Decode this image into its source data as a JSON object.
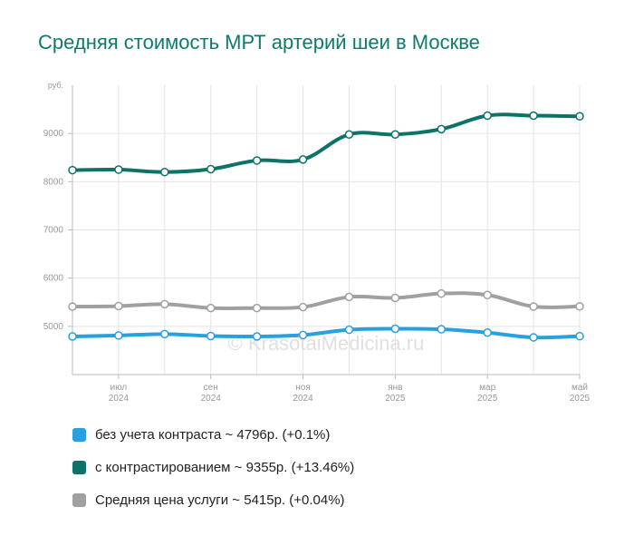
{
  "title": "Средняя стоимость МРТ артерий шеи в Москве",
  "watermark": "© KrasotaiMedicina.ru",
  "colors": {
    "series_blue": "#29a0e0",
    "series_teal": "#0d7267",
    "series_gray": "#a0a0a0",
    "grid": "#e4e4e4",
    "axis": "#bbbbbb",
    "tick_text": "#999999"
  },
  "legend": [
    {
      "label": "без учета контраста ~ 4796р. (+0.1%)",
      "color": "#29a0e0"
    },
    {
      "label": "с контрастированием ~ 9355р. (+13.46%)",
      "color": "#0d7267"
    },
    {
      "label": "Средняя цена услуги ~ 5415р. (+0.04%)",
      "color": "#a0a0a0"
    }
  ],
  "chart_data": {
    "type": "line",
    "title": "Средняя стоимость МРТ артерий шеи в Москве",
    "ylabel": "руб.",
    "ylim": [
      4000,
      10000
    ],
    "y_ticks": [
      "5000",
      "6000",
      "7000",
      "8000",
      "9000"
    ],
    "x_tick_labels": [
      {
        "month": "июл",
        "year": "2024"
      },
      {
        "month": "сен",
        "year": "2024"
      },
      {
        "month": "ноя",
        "year": "2024"
      },
      {
        "month": "янв",
        "year": "2025"
      },
      {
        "month": "мар",
        "year": "2025"
      },
      {
        "month": "май",
        "year": "2025"
      }
    ],
    "x": [
      "2024-06",
      "2024-07",
      "2024-08",
      "2024-09",
      "2024-10",
      "2024-11",
      "2024-12",
      "2025-01",
      "2025-02",
      "2025-03",
      "2025-04",
      "2025-05"
    ],
    "series": [
      {
        "name": "с контрастированием",
        "color": "#0d7267",
        "values": [
          8240,
          8250,
          8200,
          8260,
          8440,
          8460,
          8980,
          8980,
          9090,
          9370,
          9370,
          9355
        ]
      },
      {
        "name": "Средняя цена услуги",
        "color": "#a0a0a0",
        "values": [
          5410,
          5420,
          5460,
          5380,
          5380,
          5400,
          5610,
          5590,
          5680,
          5650,
          5410,
          5415
        ]
      },
      {
        "name": "без учета контраста",
        "color": "#29a0e0",
        "values": [
          4790,
          4810,
          4840,
          4800,
          4790,
          4820,
          4930,
          4950,
          4940,
          4870,
          4770,
          4796
        ]
      }
    ],
    "grid": true,
    "legend_position": "bottom"
  }
}
